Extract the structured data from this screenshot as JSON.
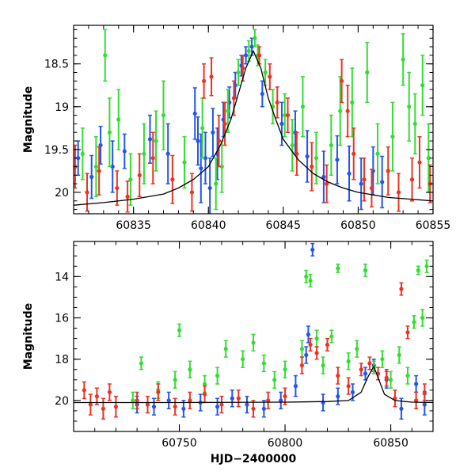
{
  "chart_data": [
    {
      "type": "scatter",
      "title": "",
      "xlabel": "",
      "ylabel": "Magnitude",
      "xlim": [
        60831,
        60855
      ],
      "ylim": [
        20.25,
        18.05
      ],
      "y_inverted": true,
      "x_ticks": [
        60835,
        60840,
        60845,
        60850,
        60855
      ],
      "x_tick_labels": [
        "60835",
        "60840",
        "60845",
        "60850",
        "60855"
      ],
      "y_ticks": [
        18.5,
        19,
        19.5,
        20
      ],
      "y_tick_labels": [
        "18.5",
        "19",
        "19.5",
        "20"
      ],
      "grid": false,
      "model_curve": {
        "color": "#000000",
        "x": [
          60831,
          60833,
          60835,
          60837,
          60838,
          60839,
          60840,
          60840.8,
          60841.5,
          60842,
          60842.5,
          60843,
          60843.5,
          60844,
          60844.5,
          60845,
          60846,
          60847,
          60848,
          60849,
          60850,
          60852,
          60855
        ],
        "y": [
          20.15,
          20.12,
          20.08,
          20.02,
          19.95,
          19.85,
          19.7,
          19.45,
          19.15,
          18.85,
          18.55,
          18.35,
          18.55,
          18.9,
          19.15,
          19.38,
          19.62,
          19.78,
          19.88,
          19.95,
          20.0,
          20.06,
          20.1
        ]
      },
      "series": [
        {
          "color": "#2255ee",
          "x": [
            60831.3,
            60832.2,
            60832.8,
            60833.6,
            60834.4,
            60836.1,
            60837.3,
            60839.1,
            60839.3,
            60839.5,
            60839.8,
            60840.1,
            60840.3,
            60840.6,
            60841.0,
            60841.4,
            60841.8,
            60842.2,
            60842.5,
            60842.9,
            60843.6,
            60844.9,
            60845.8,
            60846.6,
            60847.7,
            60848.6,
            60849.4,
            60850.2,
            60851.0,
            60851.6
          ],
          "y": [
            19.6,
            19.82,
            19.45,
            19.7,
            19.52,
            19.38,
            19.55,
            19.08,
            19.4,
            19.72,
            19.6,
            19.95,
            19.3,
            19.55,
            19.15,
            18.95,
            18.75,
            18.52,
            18.4,
            18.3,
            18.85,
            19.2,
            19.3,
            19.58,
            19.82,
            19.62,
            19.78,
            19.9,
            19.75,
            19.88
          ],
          "yerr": [
            0.2,
            0.25,
            0.22,
            0.3,
            0.2,
            0.28,
            0.35,
            0.3,
            0.28,
            0.4,
            0.3,
            0.35,
            0.28,
            0.3,
            0.2,
            0.18,
            0.15,
            0.12,
            0.1,
            0.1,
            0.15,
            0.25,
            0.25,
            0.3,
            0.3,
            0.28,
            0.32,
            0.3,
            0.28,
            0.3
          ]
        },
        {
          "color": "#33dd33",
          "x": [
            60831.6,
            60832.5,
            60833.1,
            60833.4,
            60834.0,
            60834.8,
            60835.7,
            60836.5,
            60837.0,
            60838.4,
            60839.6,
            60840.5,
            60840.9,
            60841.3,
            60842.0,
            60842.7,
            60843.1,
            60843.3,
            60843.8,
            60844.3,
            60845.1,
            60845.6,
            60846.3,
            60847.2,
            60848.2,
            60848.8,
            60849.6,
            60850.6,
            60851.3,
            60852.3,
            60853.0,
            60853.4,
            60853.8,
            60854.3,
            60854.7
          ],
          "y": [
            19.55,
            19.7,
            18.4,
            19.3,
            19.15,
            19.85,
            19.55,
            19.4,
            19.1,
            19.65,
            19.25,
            19.9,
            19.7,
            19.05,
            18.6,
            18.35,
            18.2,
            18.4,
            18.6,
            19.0,
            19.1,
            19.45,
            19.0,
            19.6,
            19.45,
            19.05,
            18.95,
            18.6,
            19.55,
            19.35,
            18.45,
            19.0,
            19.2,
            18.75,
            19.6
          ],
          "yerr": [
            0.3,
            0.35,
            0.3,
            0.4,
            0.35,
            0.3,
            0.35,
            0.35,
            0.4,
            0.3,
            0.35,
            0.3,
            0.3,
            0.25,
            0.15,
            0.12,
            0.1,
            0.12,
            0.15,
            0.2,
            0.25,
            0.3,
            0.35,
            0.3,
            0.35,
            0.4,
            0.4,
            0.35,
            0.35,
            0.4,
            0.3,
            0.4,
            0.35,
            0.35,
            0.4
          ]
        },
        {
          "color": "#ee3322",
          "x": [
            60831.1,
            60831.9,
            60832.7,
            60833.9,
            60834.6,
            60835.4,
            60836.3,
            60837.6,
            60838.9,
            60839.7,
            60840.2,
            60840.7,
            60841.1,
            60841.7,
            60842.3,
            60843.4,
            60844.1,
            60844.6,
            60845.3,
            60845.9,
            60846.9,
            60847.9,
            60848.9,
            60849.3,
            60849.7,
            60850.4,
            60850.9,
            60852.0,
            60852.7,
            60853.6,
            60854.1,
            60854.8
          ],
          "y": [
            19.7,
            20.0,
            19.75,
            19.95,
            20.05,
            19.8,
            19.6,
            19.85,
            20.0,
            18.7,
            18.65,
            19.4,
            19.2,
            18.9,
            18.55,
            18.4,
            18.65,
            18.95,
            19.1,
            19.55,
            19.7,
            19.9,
            18.7,
            19.05,
            19.55,
            19.85,
            19.95,
            19.75,
            20.0,
            19.85,
            19.65,
            19.9
          ],
          "yerr": [
            0.25,
            0.22,
            0.28,
            0.2,
            0.18,
            0.25,
            0.3,
            0.28,
            0.22,
            0.2,
            0.22,
            0.3,
            0.25,
            0.2,
            0.15,
            0.1,
            0.15,
            0.18,
            0.2,
            0.25,
            0.28,
            0.22,
            0.25,
            0.3,
            0.3,
            0.25,
            0.22,
            0.28,
            0.22,
            0.25,
            0.3,
            0.22
          ]
        }
      ]
    },
    {
      "type": "scatter",
      "title": "",
      "xlabel": "HJD−2400000",
      "ylabel": "Magnitude",
      "xlim": [
        60700,
        60870
      ],
      "ylim": [
        21.5,
        12.3
      ],
      "y_inverted": true,
      "x_ticks": [
        60750,
        60800,
        60850
      ],
      "x_tick_labels": [
        "60750",
        "60800",
        "60850"
      ],
      "y_ticks": [
        14,
        16,
        18,
        20
      ],
      "y_tick_labels": [
        "14",
        "16",
        "18",
        "20"
      ],
      "grid": false,
      "model_curve": {
        "color": "#000000",
        "x": [
          60700,
          60750,
          60800,
          60820,
          60830,
          60836,
          60839,
          60842,
          60844,
          60847,
          60852,
          60860,
          60870
        ],
        "y": [
          20.1,
          20.1,
          20.08,
          20.05,
          20.0,
          19.6,
          18.9,
          18.35,
          18.9,
          19.7,
          20.0,
          20.08,
          20.1
        ]
      },
      "series": [
        {
          "color": "#2255ee",
          "x": [
            60730,
            60738,
            60745,
            60752,
            60760,
            60768,
            60775,
            60782,
            60790,
            60798,
            60805,
            60810,
            60811,
            60813,
            60818,
            60825,
            60832,
            60838,
            60842,
            60848,
            60855,
            60862,
            60866
          ],
          "y": [
            20.2,
            20.3,
            20.0,
            20.4,
            20.1,
            20.3,
            19.9,
            20.2,
            20.4,
            20.0,
            19.3,
            17.8,
            16.8,
            12.7,
            20.1,
            19.8,
            19.6,
            18.7,
            18.3,
            19.0,
            20.4,
            19.2,
            20.2
          ],
          "yerr": [
            0.4,
            0.4,
            0.4,
            0.4,
            0.4,
            0.4,
            0.4,
            0.4,
            0.4,
            0.4,
            0.5,
            0.4,
            0.4,
            0.3,
            0.4,
            0.4,
            0.4,
            0.3,
            0.3,
            0.4,
            0.5,
            0.4,
            0.5
          ]
        },
        {
          "color": "#33dd33",
          "x": [
            60728,
            60732,
            60740,
            60748,
            60750,
            60755,
            60762,
            60768,
            60772,
            60780,
            60785,
            60790,
            60795,
            60800,
            60808,
            60810,
            60812,
            60815,
            60818,
            60822,
            60825,
            60830,
            60834,
            60838,
            60842,
            60846,
            60850,
            60854,
            60858,
            60861,
            60863,
            60865,
            60867
          ],
          "y": [
            20.0,
            18.2,
            19.5,
            19.0,
            16.6,
            18.5,
            19.2,
            18.8,
            17.5,
            18.0,
            17.2,
            18.2,
            19.0,
            18.5,
            17.5,
            14.0,
            14.2,
            17.0,
            18.3,
            16.9,
            13.6,
            18.1,
            17.5,
            13.7,
            18.4,
            18.0,
            19.0,
            17.8,
            18.8,
            16.2,
            13.7,
            16.0,
            13.5
          ],
          "yerr": [
            0.4,
            0.3,
            0.4,
            0.4,
            0.3,
            0.4,
            0.4,
            0.4,
            0.4,
            0.4,
            0.4,
            0.4,
            0.4,
            0.4,
            0.4,
            0.3,
            0.3,
            0.4,
            0.4,
            0.3,
            0.2,
            0.4,
            0.4,
            0.3,
            0.3,
            0.4,
            0.4,
            0.4,
            0.4,
            0.3,
            0.2,
            0.4,
            0.3
          ]
        },
        {
          "color": "#ee3322",
          "x": [
            60705,
            60708,
            60711,
            60714,
            60717,
            60720,
            60730,
            60735,
            60740,
            60748,
            60755,
            60762,
            60770,
            60778,
            60785,
            60792,
            60800,
            60808,
            60812,
            60815,
            60820,
            60825,
            60830,
            60836,
            60840,
            60844,
            60848,
            60852,
            60855,
            60858,
            60862,
            60866
          ],
          "y": [
            19.5,
            20.2,
            19.8,
            20.4,
            19.6,
            20.3,
            20.0,
            20.2,
            19.6,
            20.3,
            20.0,
            19.7,
            20.2,
            19.9,
            20.4,
            20.0,
            19.8,
            18.3,
            17.3,
            17.7,
            17.3,
            18.8,
            19.3,
            18.5,
            18.2,
            18.7,
            18.9,
            19.9,
            14.6,
            16.7,
            20.0,
            19.6
          ],
          "yerr": [
            0.4,
            0.5,
            0.4,
            0.5,
            0.4,
            0.5,
            0.4,
            0.4,
            0.4,
            0.4,
            0.4,
            0.4,
            0.4,
            0.4,
            0.4,
            0.4,
            0.4,
            0.4,
            0.3,
            0.3,
            0.3,
            0.4,
            0.4,
            0.3,
            0.3,
            0.3,
            0.4,
            0.4,
            0.3,
            0.3,
            0.4,
            0.4
          ]
        }
      ]
    }
  ]
}
